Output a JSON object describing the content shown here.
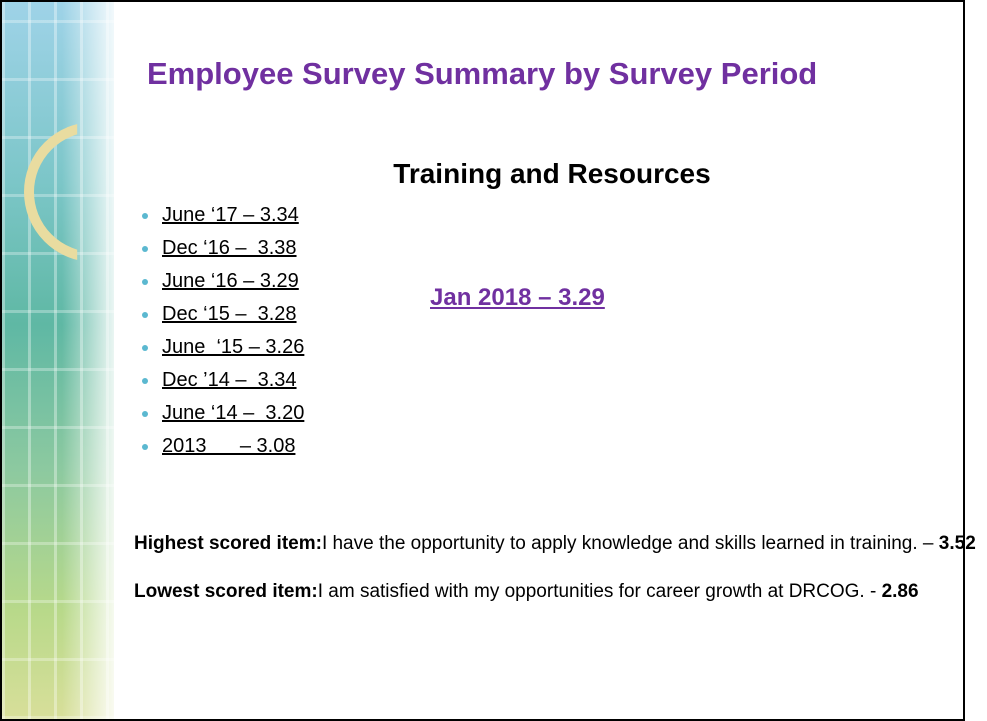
{
  "slide": {
    "title": "Employee Survey Summary by Survey Period",
    "subtitle": "Training and Resources",
    "items": [
      "June ‘17 – 3.34",
      "Dec ‘16 –  3.38",
      "June ‘16 – 3.29",
      "Dec ‘15 –  3.28",
      "June  ‘15 – 3.26",
      "Dec ’14 –  3.34",
      "June ‘14 –  3.20",
      "2013      – 3.08"
    ],
    "current": "Jan 2018 – 3.29",
    "highest": {
      "label": "Highest scored item:",
      "text": "I have the opportunity to apply knowledge and skills learned in training. – ",
      "value": "3.52"
    },
    "lowest": {
      "label": "Lowest scored item:",
      "text": "I am satisfied with my opportunities for career growth at DRCOG. - ",
      "value": "2.86"
    }
  }
}
